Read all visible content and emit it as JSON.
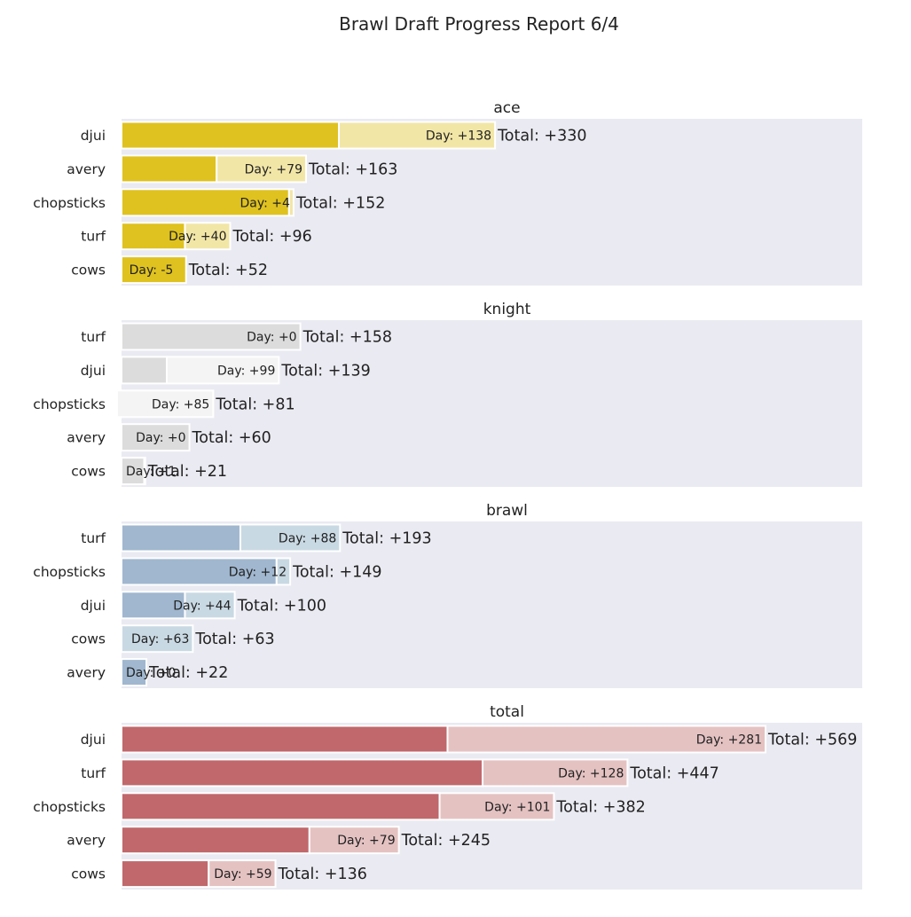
{
  "chart_data": {
    "type": "bar",
    "orientation": "horizontal",
    "stacked": true,
    "title": "Brawl Draft Progress Report 6/4",
    "grid": false,
    "xlabel": "",
    "ylabel": "",
    "xlim": [
      -10,
      585
    ],
    "panels": [
      {
        "title": "ace",
        "colors": {
          "prior": "#dfc21f",
          "day": "#f2e6a7"
        },
        "rows": [
          {
            "label": "djui",
            "prior": 192,
            "day": 138,
            "day_label": "Day: +138",
            "total_label": "Total: +330"
          },
          {
            "label": "avery",
            "prior": 84,
            "day": 79,
            "day_label": "Day: +79",
            "total_label": "Total: +163"
          },
          {
            "label": "chopsticks",
            "prior": 148,
            "day": 4,
            "day_label": "Day: +4",
            "total_label": "Total: +152"
          },
          {
            "label": "turf",
            "prior": 56,
            "day": 40,
            "day_label": "Day: +40",
            "total_label": "Total: +96"
          },
          {
            "label": "cows",
            "prior": 57,
            "day": -5,
            "day_label": "Day: -5",
            "total_label": "Total: +52"
          }
        ]
      },
      {
        "title": "knight",
        "colors": {
          "prior": "#dcdcdc",
          "day": "#f4f4f4"
        },
        "rows": [
          {
            "label": "turf",
            "prior": 158,
            "day": 0,
            "day_label": "Day: +0",
            "total_label": "Total: +158"
          },
          {
            "label": "djui",
            "prior": 40,
            "day": 99,
            "day_label": "Day: +99",
            "total_label": "Total: +139"
          },
          {
            "label": "chopsticks",
            "prior": -4,
            "day": 85,
            "day_label": "Day: +85",
            "total_label": "Total: +81"
          },
          {
            "label": "avery",
            "prior": 60,
            "day": 0,
            "day_label": "Day: +0",
            "total_label": "Total: +60"
          },
          {
            "label": "cows",
            "prior": 20,
            "day": 1,
            "day_label": "Day: +1",
            "total_label": "Total: +21"
          }
        ]
      },
      {
        "title": "brawl",
        "colors": {
          "prior": "#a0b7cf",
          "day": "#c9d9e3"
        },
        "rows": [
          {
            "label": "turf",
            "prior": 105,
            "day": 88,
            "day_label": "Day: +88",
            "total_label": "Total: +193"
          },
          {
            "label": "chopsticks",
            "prior": 137,
            "day": 12,
            "day_label": "Day: +12",
            "total_label": "Total: +149"
          },
          {
            "label": "djui",
            "prior": 56,
            "day": 44,
            "day_label": "Day: +44",
            "total_label": "Total: +100"
          },
          {
            "label": "cows",
            "prior": 0,
            "day": 63,
            "day_label": "Day: +63",
            "total_label": "Total: +63"
          },
          {
            "label": "avery",
            "prior": 22,
            "day": 0,
            "day_label": "Day: +0",
            "total_label": "Total: +22"
          }
        ]
      },
      {
        "title": "total",
        "colors": {
          "prior": "#c0686c",
          "day": "#e5c2c2"
        },
        "rows": [
          {
            "label": "djui",
            "prior": 288,
            "day": 281,
            "day_label": "Day: +281",
            "total_label": "Total: +569"
          },
          {
            "label": "turf",
            "prior": 319,
            "day": 128,
            "day_label": "Day: +128",
            "total_label": "Total: +447"
          },
          {
            "label": "chopsticks",
            "prior": 281,
            "day": 101,
            "day_label": "Day: +101",
            "total_label": "Total: +382"
          },
          {
            "label": "avery",
            "prior": 166,
            "day": 79,
            "day_label": "Day: +79",
            "total_label": "Total: +245"
          },
          {
            "label": "cows",
            "prior": 77,
            "day": 59,
            "day_label": "Day: +59",
            "total_label": "Total: +136"
          }
        ]
      }
    ]
  }
}
